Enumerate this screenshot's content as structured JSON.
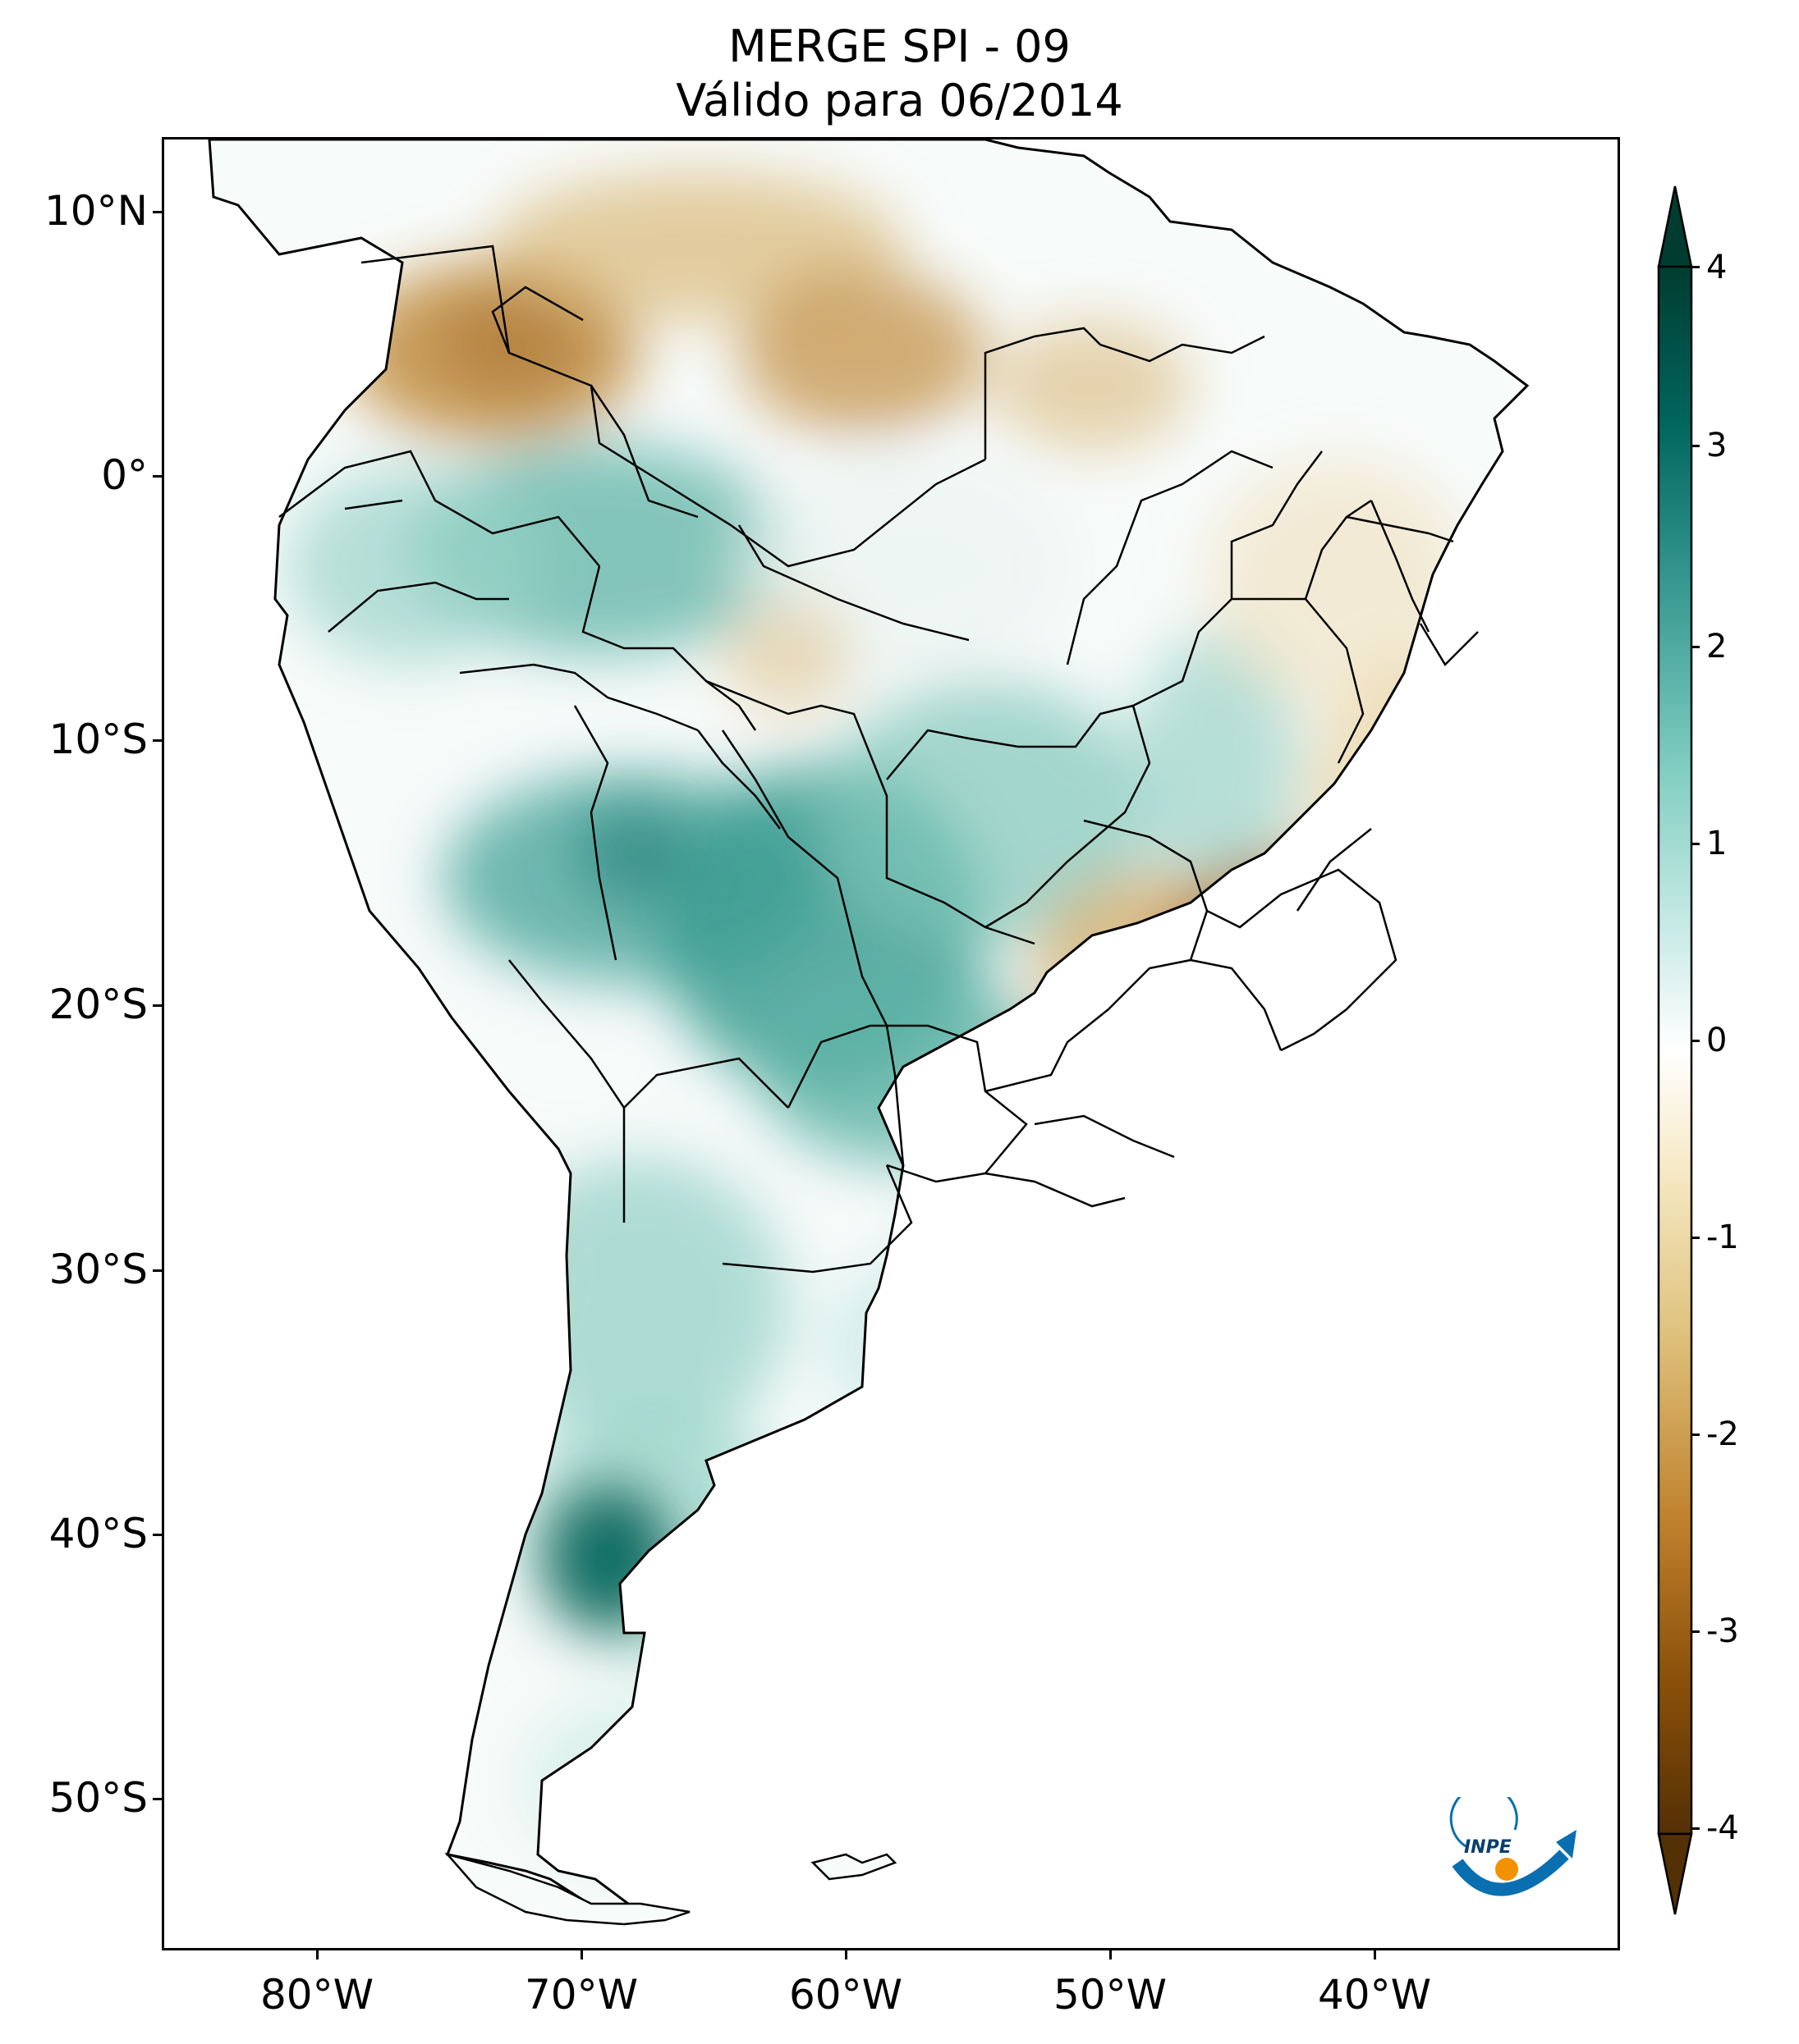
{
  "title": {
    "line1": "MERGE   SPI - 09",
    "line2": "Válido para 06/2014"
  },
  "axes": {
    "lat_labels": [
      "10°N",
      "0°",
      "10°S",
      "20°S",
      "30°S",
      "40°S",
      "50°S"
    ],
    "lon_labels": [
      "80°W",
      "70°W",
      "60°W",
      "50°W",
      "40°W"
    ]
  },
  "colorbar": {
    "labels": [
      "4",
      "3",
      "2",
      "1",
      "0",
      "-1",
      "-2",
      "-3",
      "-4"
    ],
    "min": -4,
    "max": 4,
    "extend": "both",
    "colormap": "BrBG",
    "colors": [
      "#543005",
      "#8c510a",
      "#bf812d",
      "#dfc27d",
      "#f6e8c3",
      "#ffffff",
      "#c7eae5",
      "#80cdc1",
      "#35978f",
      "#01665e",
      "#003c30"
    ]
  },
  "logo": {
    "text": "INPE",
    "colors": [
      "#0a6fb0",
      "#f39200"
    ]
  }
}
